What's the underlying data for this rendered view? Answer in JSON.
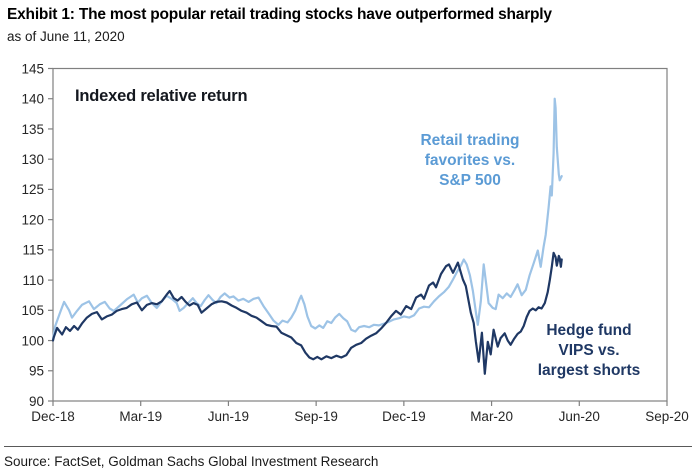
{
  "header": {
    "title": "Exhibit 1: The most popular retail trading stocks have outperformed sharply",
    "subtitle": "as of June 11, 2020"
  },
  "source": {
    "text": "Source: FactSet, Goldman Sachs Global Investment Research"
  },
  "colors": {
    "axis": "#808080",
    "tick_text": "#262626",
    "retail_line": "#9DC3E6",
    "retail_label": "#5B9BD5",
    "hedge_line": "#1F3864",
    "hedge_label": "#1F3864"
  },
  "chart_data": {
    "type": "line",
    "inner_title": "Indexed relative return",
    "x_unit": "months since Dec-2018",
    "xlim": [
      0,
      21
    ],
    "ylim": [
      90,
      145
    ],
    "y_tick_step": 5,
    "y_tick_labels": [
      "90",
      "95",
      "100",
      "105",
      "110",
      "115",
      "120",
      "125",
      "130",
      "135",
      "140",
      "145"
    ],
    "x_tick_months": [
      0,
      3,
      6,
      9,
      12,
      15,
      18,
      21
    ],
    "x_tick_labels": [
      "Dec-18",
      "Mar-19",
      "Jun-19",
      "Sep-19",
      "Dec-19",
      "Mar-20",
      "Jun-20",
      "Sep-20"
    ],
    "grid": false,
    "legend_position": "inline-annotations",
    "series": [
      {
        "name": "Retail trading favorites vs. S&P 500",
        "annotation": "Retail trading\nfavorites vs.\nS&P 500",
        "color": "#9DC3E6",
        "label_color": "#5B9BD5",
        "points": [
          [
            0,
            100.2
          ],
          [
            0.07,
            102.3
          ],
          [
            0.24,
            104.6
          ],
          [
            0.38,
            106.4
          ],
          [
            0.55,
            105.0
          ],
          [
            0.65,
            103.8
          ],
          [
            0.82,
            104.9
          ],
          [
            0.99,
            105.9
          ],
          [
            1.23,
            106.5
          ],
          [
            1.4,
            105.2
          ],
          [
            1.6,
            106.0
          ],
          [
            1.77,
            106.4
          ],
          [
            1.94,
            105.3
          ],
          [
            2.08,
            104.9
          ],
          [
            2.29,
            105.8
          ],
          [
            2.52,
            106.8
          ],
          [
            2.76,
            107.6
          ],
          [
            2.9,
            106.3
          ],
          [
            3.04,
            107.0
          ],
          [
            3.21,
            107.4
          ],
          [
            3.38,
            106.2
          ],
          [
            3.55,
            105.4
          ],
          [
            3.72,
            106.5
          ],
          [
            3.89,
            107.4
          ],
          [
            4.06,
            106.9
          ],
          [
            4.23,
            106.2
          ],
          [
            4.33,
            104.9
          ],
          [
            4.47,
            105.4
          ],
          [
            4.64,
            106.3
          ],
          [
            4.78,
            107.0
          ],
          [
            4.91,
            106.2
          ],
          [
            5.05,
            105.7
          ],
          [
            5.19,
            106.7
          ],
          [
            5.32,
            107.5
          ],
          [
            5.46,
            106.7
          ],
          [
            5.59,
            106.2
          ],
          [
            5.73,
            107.2
          ],
          [
            5.87,
            107.8
          ],
          [
            6.04,
            107.1
          ],
          [
            6.17,
            107.3
          ],
          [
            6.34,
            106.6
          ],
          [
            6.51,
            106.9
          ],
          [
            6.69,
            106.4
          ],
          [
            6.86,
            106.9
          ],
          [
            7.03,
            107.1
          ],
          [
            7.2,
            105.7
          ],
          [
            7.37,
            104.5
          ],
          [
            7.54,
            103.3
          ],
          [
            7.71,
            102.6
          ],
          [
            7.85,
            103.3
          ],
          [
            8.02,
            103.0
          ],
          [
            8.15,
            103.8
          ],
          [
            8.29,
            105.0
          ],
          [
            8.43,
            106.8
          ],
          [
            8.49,
            107.4
          ],
          [
            8.6,
            106.0
          ],
          [
            8.7,
            104.0
          ],
          [
            8.83,
            102.4
          ],
          [
            8.97,
            102.0
          ],
          [
            9.11,
            102.5
          ],
          [
            9.24,
            102.1
          ],
          [
            9.38,
            103.2
          ],
          [
            9.52,
            102.9
          ],
          [
            9.65,
            103.8
          ],
          [
            9.79,
            104.4
          ],
          [
            9.93,
            103.7
          ],
          [
            10.06,
            103.2
          ],
          [
            10.2,
            101.8
          ],
          [
            10.34,
            101.5
          ],
          [
            10.47,
            102.2
          ],
          [
            10.64,
            102.4
          ],
          [
            10.81,
            102.2
          ],
          [
            10.98,
            102.6
          ],
          [
            11.15,
            102.5
          ],
          [
            11.32,
            102.8
          ],
          [
            11.49,
            103.1
          ],
          [
            11.66,
            103.5
          ],
          [
            11.84,
            103.7
          ],
          [
            12.01,
            104.0
          ],
          [
            12.18,
            103.8
          ],
          [
            12.35,
            104.2
          ],
          [
            12.52,
            105.3
          ],
          [
            12.69,
            105.6
          ],
          [
            12.86,
            105.5
          ],
          [
            13.03,
            106.5
          ],
          [
            13.2,
            107.3
          ],
          [
            13.37,
            108.0
          ],
          [
            13.54,
            108.9
          ],
          [
            13.68,
            110.1
          ],
          [
            13.81,
            111.3
          ],
          [
            13.95,
            112.4
          ],
          [
            14.05,
            113.4
          ],
          [
            14.15,
            112.6
          ],
          [
            14.26,
            110.8
          ],
          [
            14.36,
            108.2
          ],
          [
            14.46,
            104.8
          ],
          [
            14.53,
            102.6
          ],
          [
            14.63,
            106.5
          ],
          [
            14.73,
            112.6
          ],
          [
            14.8,
            110.0
          ],
          [
            14.9,
            106.2
          ],
          [
            15.04,
            105.4
          ],
          [
            15.14,
            105.2
          ],
          [
            15.24,
            107.6
          ],
          [
            15.38,
            107.0
          ],
          [
            15.52,
            107.8
          ],
          [
            15.65,
            107.2
          ],
          [
            15.79,
            108.4
          ],
          [
            15.89,
            109.3
          ],
          [
            16.03,
            107.5
          ],
          [
            16.17,
            108.4
          ],
          [
            16.3,
            110.8
          ],
          [
            16.44,
            112.8
          ],
          [
            16.58,
            114.9
          ],
          [
            16.68,
            112.2
          ],
          [
            16.78,
            115.5
          ],
          [
            16.85,
            117.5
          ],
          [
            16.95,
            122.0
          ],
          [
            17.02,
            125.5
          ],
          [
            17.06,
            124.0
          ],
          [
            17.12,
            131.0
          ],
          [
            17.16,
            140.0
          ],
          [
            17.19,
            138.5
          ],
          [
            17.23,
            132.0
          ],
          [
            17.3,
            127.5
          ],
          [
            17.33,
            126.5
          ],
          [
            17.4,
            127.2
          ]
        ]
      },
      {
        "name": "Hedge fund VIPS vs. largest shorts",
        "annotation": "Hedge fund\nVIPS vs.\nlargest shorts",
        "color": "#1F3864",
        "label_color": "#1F3864",
        "points": [
          [
            0,
            100.0
          ],
          [
            0.03,
            100.6
          ],
          [
            0.14,
            102.1
          ],
          [
            0.31,
            101.0
          ],
          [
            0.44,
            102.2
          ],
          [
            0.58,
            101.6
          ],
          [
            0.72,
            102.4
          ],
          [
            0.85,
            101.8
          ],
          [
            0.99,
            102.8
          ],
          [
            1.16,
            103.8
          ],
          [
            1.33,
            104.4
          ],
          [
            1.5,
            104.7
          ],
          [
            1.67,
            103.5
          ],
          [
            1.84,
            104.0
          ],
          [
            2.01,
            104.3
          ],
          [
            2.18,
            104.9
          ],
          [
            2.35,
            105.2
          ],
          [
            2.52,
            105.4
          ],
          [
            2.69,
            106.0
          ],
          [
            2.87,
            106.3
          ],
          [
            3.04,
            105.0
          ],
          [
            3.21,
            105.9
          ],
          [
            3.38,
            106.2
          ],
          [
            3.55,
            106.0
          ],
          [
            3.72,
            106.5
          ],
          [
            3.89,
            107.6
          ],
          [
            3.99,
            108.2
          ],
          [
            4.13,
            107.0
          ],
          [
            4.26,
            106.6
          ],
          [
            4.4,
            107.2
          ],
          [
            4.54,
            106.4
          ],
          [
            4.67,
            105.8
          ],
          [
            4.81,
            106.2
          ],
          [
            4.95,
            105.9
          ],
          [
            5.08,
            104.6
          ],
          [
            5.25,
            105.3
          ],
          [
            5.42,
            106.0
          ],
          [
            5.59,
            106.4
          ],
          [
            5.77,
            106.5
          ],
          [
            5.94,
            106.3
          ],
          [
            6.11,
            105.8
          ],
          [
            6.28,
            105.4
          ],
          [
            6.45,
            104.9
          ],
          [
            6.62,
            104.6
          ],
          [
            6.79,
            104.1
          ],
          [
            6.96,
            103.8
          ],
          [
            7.13,
            103.2
          ],
          [
            7.3,
            102.6
          ],
          [
            7.47,
            102.4
          ],
          [
            7.64,
            102.3
          ],
          [
            7.81,
            101.3
          ],
          [
            7.98,
            100.9
          ],
          [
            8.15,
            100.5
          ],
          [
            8.32,
            99.6
          ],
          [
            8.49,
            99.2
          ],
          [
            8.63,
            98.0
          ],
          [
            8.77,
            97.2
          ],
          [
            8.9,
            96.9
          ],
          [
            9.04,
            97.3
          ],
          [
            9.18,
            96.9
          ],
          [
            9.35,
            97.4
          ],
          [
            9.52,
            97.1
          ],
          [
            9.69,
            97.5
          ],
          [
            9.86,
            97.2
          ],
          [
            10.03,
            97.6
          ],
          [
            10.2,
            98.8
          ],
          [
            10.37,
            99.3
          ],
          [
            10.54,
            99.6
          ],
          [
            10.71,
            100.3
          ],
          [
            10.88,
            100.8
          ],
          [
            11.05,
            101.2
          ],
          [
            11.22,
            102.0
          ],
          [
            11.39,
            102.9
          ],
          [
            11.56,
            104.0
          ],
          [
            11.73,
            104.9
          ],
          [
            11.9,
            104.3
          ],
          [
            12.08,
            105.7
          ],
          [
            12.25,
            105.2
          ],
          [
            12.42,
            107.1
          ],
          [
            12.59,
            107.6
          ],
          [
            12.69,
            106.9
          ],
          [
            12.86,
            109.1
          ],
          [
            13.0,
            109.6
          ],
          [
            13.1,
            108.8
          ],
          [
            13.27,
            111.0
          ],
          [
            13.44,
            112.3
          ],
          [
            13.54,
            112.6
          ],
          [
            13.68,
            111.2
          ],
          [
            13.85,
            112.9
          ],
          [
            14.02,
            110.1
          ],
          [
            14.12,
            109.0
          ],
          [
            14.29,
            104.6
          ],
          [
            14.39,
            102.9
          ],
          [
            14.46,
            99.9
          ],
          [
            14.56,
            96.5
          ],
          [
            14.67,
            101.3
          ],
          [
            14.77,
            94.5
          ],
          [
            14.87,
            99.8
          ],
          [
            14.97,
            97.7
          ],
          [
            15.07,
            101.8
          ],
          [
            15.21,
            99.0
          ],
          [
            15.31,
            100.4
          ],
          [
            15.45,
            101.2
          ],
          [
            15.55,
            100.0
          ],
          [
            15.65,
            99.3
          ],
          [
            15.76,
            100.2
          ],
          [
            15.89,
            101.1
          ],
          [
            16.0,
            101.5
          ],
          [
            16.1,
            102.4
          ],
          [
            16.2,
            103.9
          ],
          [
            16.3,
            104.9
          ],
          [
            16.41,
            105.3
          ],
          [
            16.51,
            105.0
          ],
          [
            16.61,
            105.5
          ],
          [
            16.71,
            105.3
          ],
          [
            16.82,
            106.2
          ],
          [
            16.92,
            108.0
          ],
          [
            16.99,
            110.0
          ],
          [
            17.06,
            112.2
          ],
          [
            17.12,
            114.5
          ],
          [
            17.19,
            113.8
          ],
          [
            17.23,
            112.4
          ],
          [
            17.26,
            113.0
          ],
          [
            17.3,
            114.0
          ],
          [
            17.33,
            113.6
          ],
          [
            17.37,
            112.2
          ],
          [
            17.4,
            113.4
          ]
        ]
      }
    ]
  }
}
